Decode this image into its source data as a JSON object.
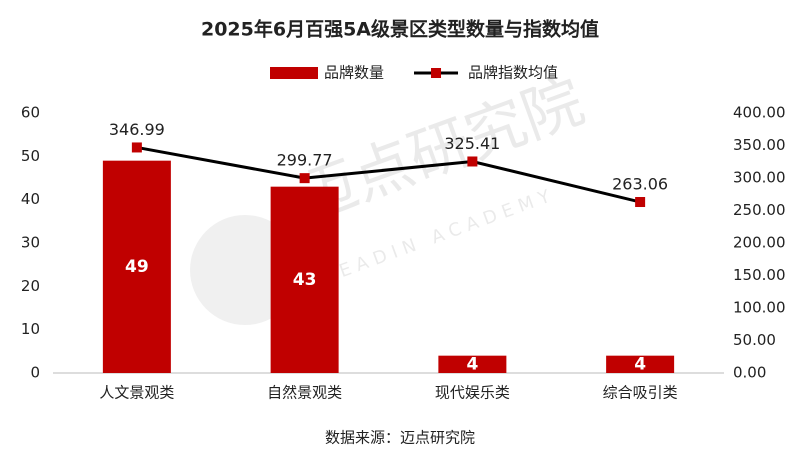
{
  "chart_data": {
    "type": "combo",
    "title": "2025年6月百强5A级景区类型数量与指数均值",
    "categories": [
      "人文景观类",
      "自然景观类",
      "现代娱乐类",
      "综合吸引类"
    ],
    "series": [
      {
        "name": "品牌数量",
        "type": "bar",
        "color": "#c00000",
        "values": [
          49,
          43,
          4,
          4
        ]
      },
      {
        "name": "品牌指数均值",
        "type": "line",
        "axis": "y2",
        "color": "#000000",
        "marker_color": "#c00000",
        "values": [
          346.99,
          299.77,
          325.41,
          263.06
        ]
      }
    ],
    "ylim": [
      0,
      60
    ],
    "yticks": [
      0,
      10,
      20,
      30,
      40,
      50,
      60
    ],
    "y2lim": [
      0,
      400
    ],
    "y2ticks": [
      {
        "value": 0,
        "label": "0.00"
      },
      {
        "value": 50,
        "label": "50.00"
      },
      {
        "value": 100,
        "label": "100.00"
      },
      {
        "value": 150,
        "label": "150.00"
      },
      {
        "value": 200,
        "label": "200.00"
      },
      {
        "value": 250,
        "label": "250.00"
      },
      {
        "value": 300,
        "label": "300.00"
      },
      {
        "value": 350,
        "label": "350.00"
      },
      {
        "value": 400,
        "label": "400.00"
      }
    ],
    "legend": "top",
    "source": "数据来源：迈点研究院",
    "watermark": "迈点研究院",
    "watermark_sub": "MEADIN ACADEMY"
  }
}
